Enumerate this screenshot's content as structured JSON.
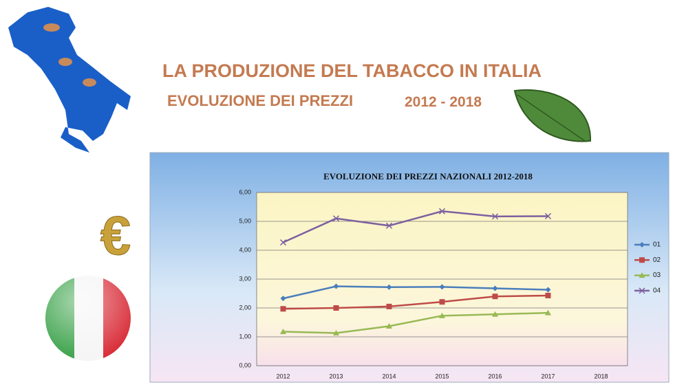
{
  "header": {
    "title": "LA PRODUZIONE DEL TABACCO IN ITALIA",
    "subtitle": "EVOLUZIONE DEI PREZZI",
    "subtitle_years": "2012 - 2018"
  },
  "chart_data": {
    "type": "line",
    "title": "EVOLUZIONE DEI PREZZI NAZIONALI 2012-2018",
    "categories": [
      "2012",
      "2013",
      "2014",
      "2015",
      "2016",
      "2017",
      "2018"
    ],
    "series": [
      {
        "name": "01",
        "color": "#4a7ebb",
        "marker": "diamond",
        "values": [
          2.33,
          2.75,
          2.72,
          2.73,
          2.68,
          2.63,
          null
        ]
      },
      {
        "name": "02",
        "color": "#be4b48",
        "marker": "square",
        "values": [
          1.97,
          2.0,
          2.05,
          2.21,
          2.4,
          2.43,
          null
        ]
      },
      {
        "name": "03",
        "color": "#98b954",
        "marker": "triangle",
        "values": [
          1.18,
          1.13,
          1.37,
          1.73,
          1.78,
          1.83,
          null
        ]
      },
      {
        "name": "04",
        "color": "#7d60a0",
        "marker": "x",
        "values": [
          4.27,
          5.1,
          4.85,
          5.35,
          5.17,
          5.18,
          null
        ]
      }
    ],
    "ylim": [
      0,
      6
    ],
    "yticks": [
      {
        "value": 0,
        "label": "0,00"
      },
      {
        "value": 1,
        "label": "1,00"
      },
      {
        "value": 2,
        "label": "2,00"
      },
      {
        "value": 3,
        "label": "3,00"
      },
      {
        "value": 4,
        "label": "4,00"
      },
      {
        "value": 5,
        "label": "5,00"
      },
      {
        "value": 6,
        "label": "6,00"
      }
    ],
    "grid": true,
    "legend": "right"
  }
}
